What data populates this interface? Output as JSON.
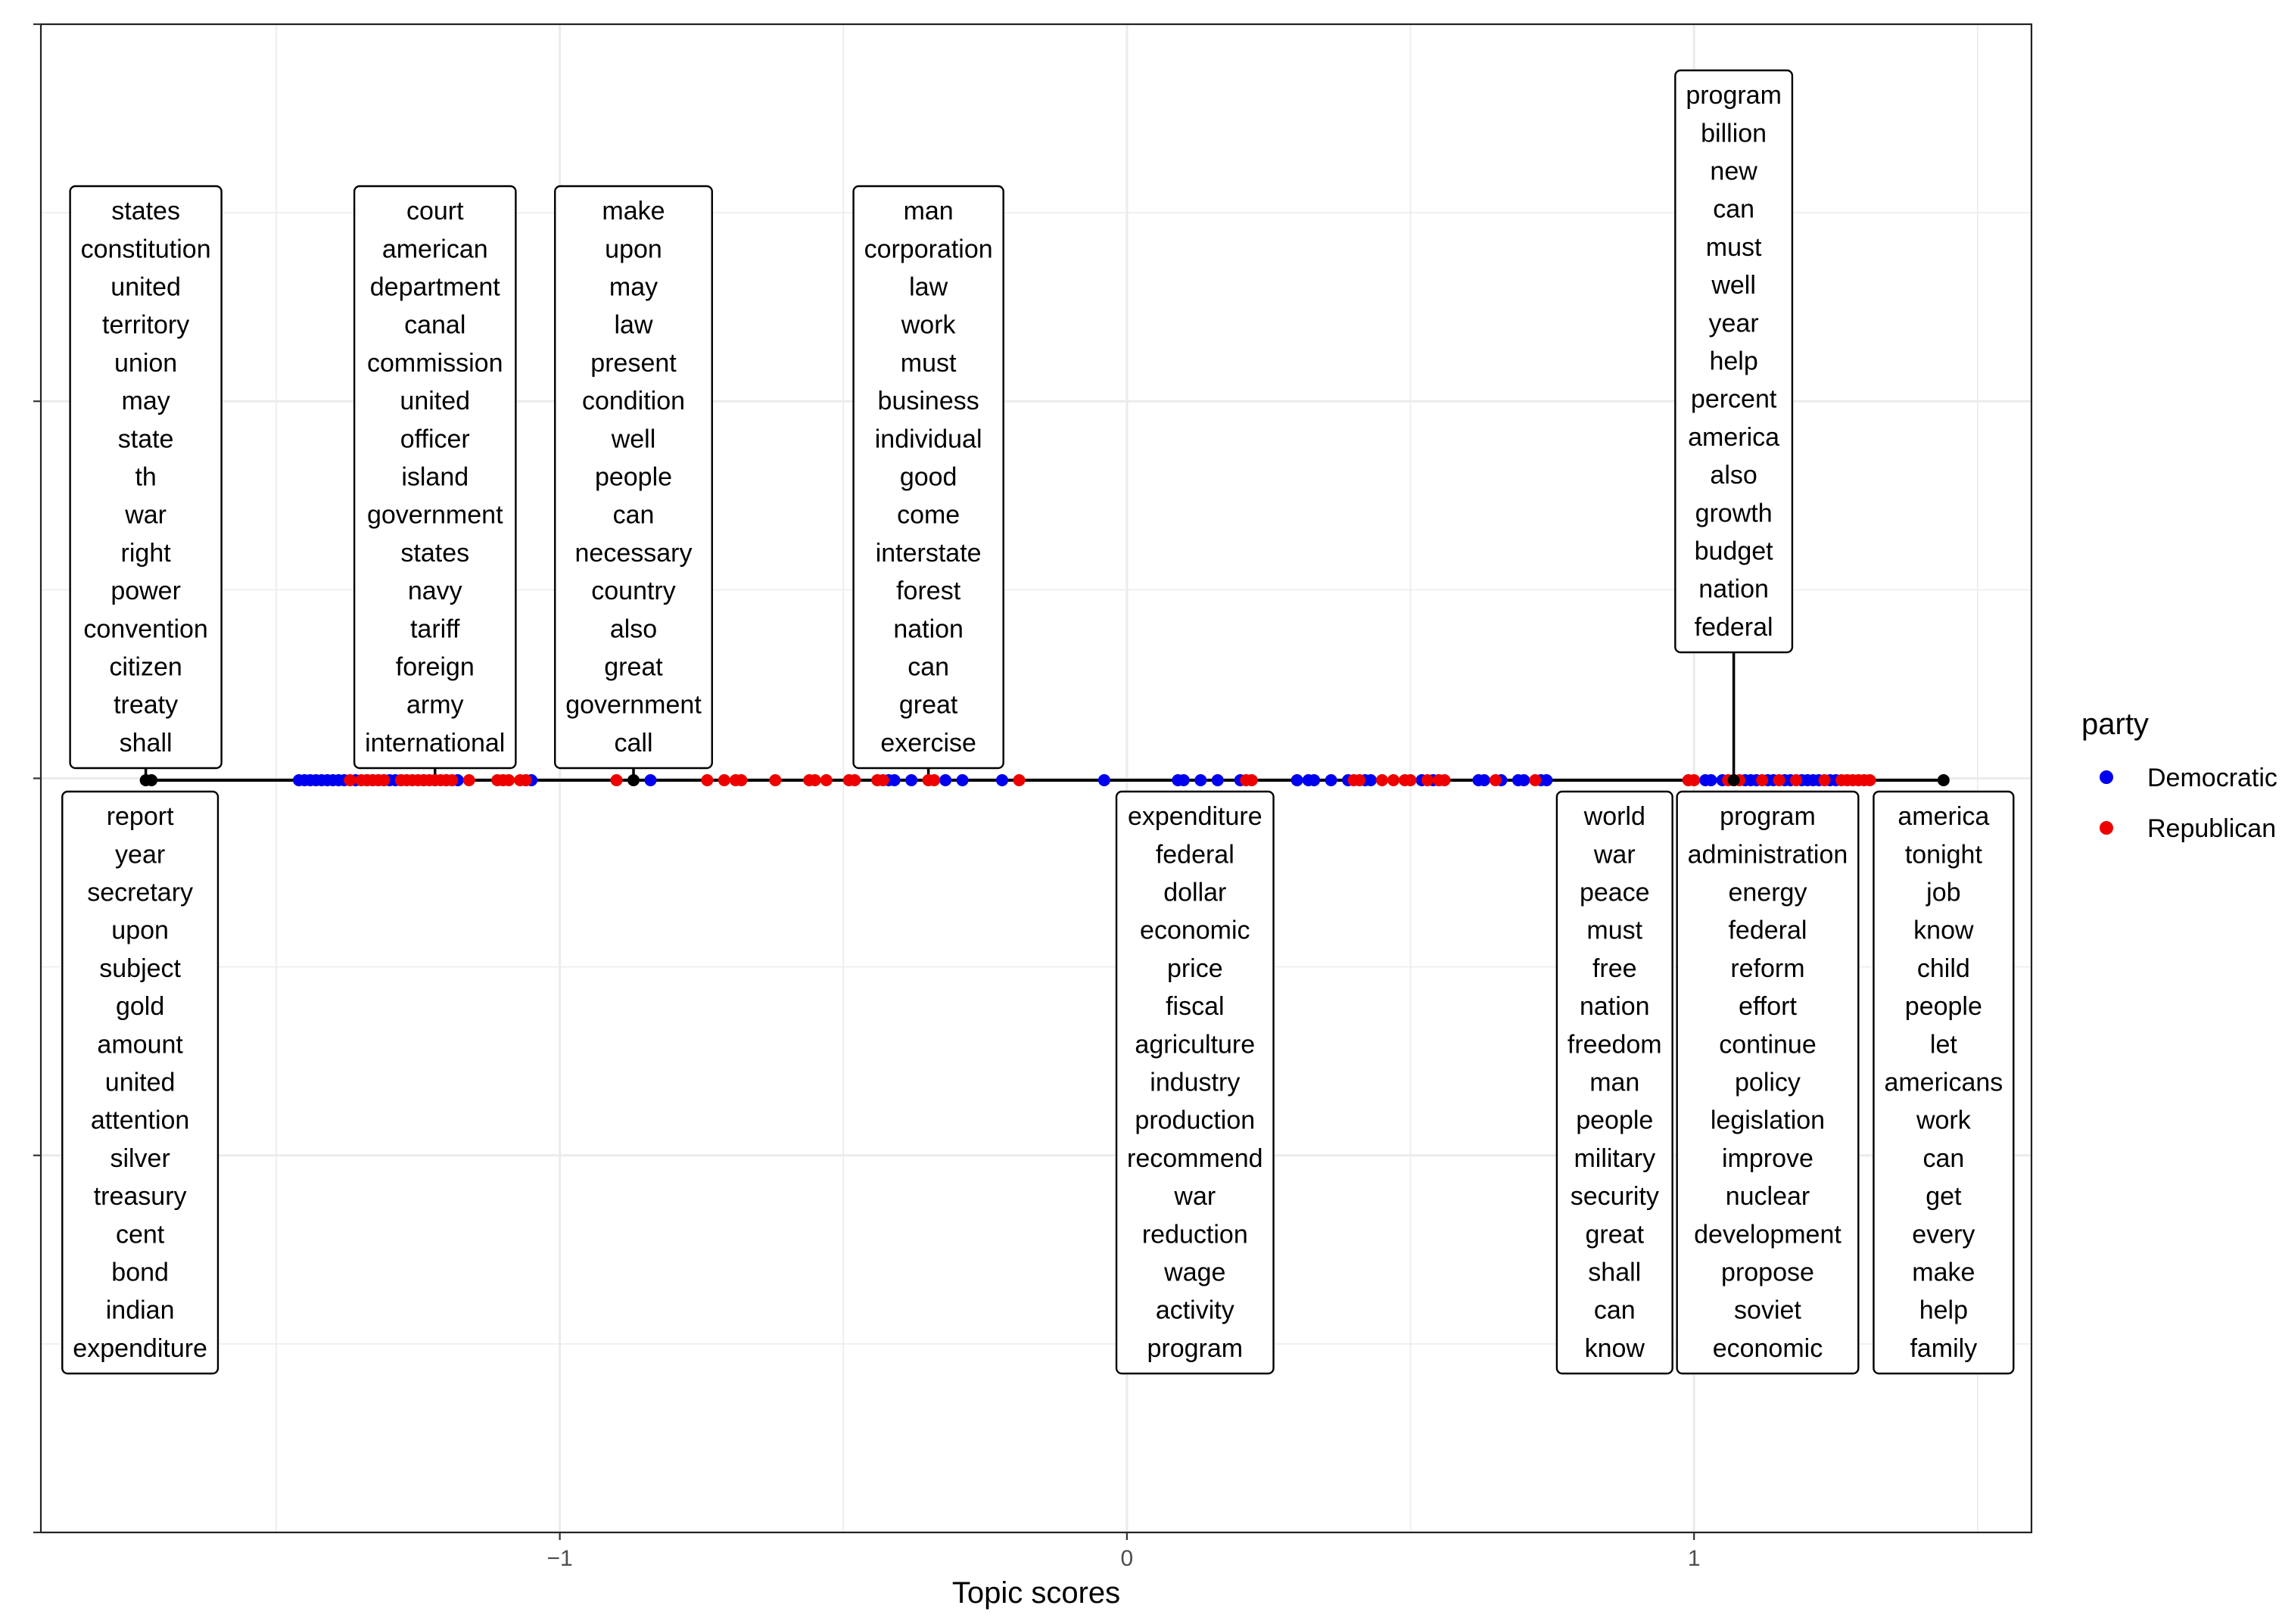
{
  "chart_data": {
    "type": "scatter",
    "xlabel": "Topic scores",
    "ylabel": "",
    "xlim": [
      -1.915,
      1.595
    ],
    "x_ticks": [
      -1,
      0,
      1
    ],
    "x_tick_labels": [
      "−1",
      "0",
      "1"
    ],
    "grid": true,
    "legend": {
      "title": "party",
      "position": "right",
      "entries": [
        {
          "name": "Democratic",
          "color": "#0000ee"
        },
        {
          "name": "Republican",
          "color": "#ee0000"
        }
      ]
    },
    "series": [
      {
        "name": "Democratic",
        "color": "#0000ee",
        "x": [
          -1.46,
          -1.45,
          -1.44,
          -1.43,
          -1.42,
          -1.41,
          -1.4,
          -1.39,
          -1.38,
          -1.36,
          -1.34,
          -1.33,
          -1.32,
          -1.31,
          -1.3,
          -1.29,
          -1.28,
          -1.24,
          -1.22,
          -1.2,
          -1.18,
          -1.06,
          -1.05,
          -0.84,
          -0.42,
          -0.41,
          -0.38,
          -0.32,
          -0.29,
          -0.22,
          -0.04,
          0.09,
          0.1,
          0.13,
          0.16,
          0.2,
          0.3,
          0.32,
          0.33,
          0.36,
          0.39,
          0.42,
          0.43,
          0.52,
          0.54,
          0.55,
          0.62,
          0.63,
          0.66,
          0.69,
          0.7,
          0.73,
          0.74,
          1.02,
          1.03,
          1.05,
          1.09,
          1.1,
          1.11,
          1.13,
          1.14,
          1.16,
          1.17,
          1.19,
          1.2,
          1.21,
          1.22,
          1.24,
          1.25
        ]
      },
      {
        "name": "Republican",
        "color": "#ee0000",
        "x": [
          -1.37,
          -1.35,
          -1.34,
          -1.33,
          -1.32,
          -1.31,
          -1.28,
          -1.27,
          -1.26,
          -1.25,
          -1.24,
          -1.23,
          -1.22,
          -1.21,
          -1.2,
          -1.19,
          -1.16,
          -1.11,
          -1.1,
          -1.09,
          -1.07,
          -1.06,
          -0.9,
          -0.74,
          -0.71,
          -0.69,
          -0.68,
          -0.62,
          -0.56,
          -0.55,
          -0.53,
          -0.49,
          -0.48,
          -0.44,
          -0.43,
          -0.35,
          -0.34,
          -0.19,
          0.21,
          0.22,
          0.4,
          0.41,
          0.45,
          0.47,
          0.49,
          0.5,
          0.53,
          0.55,
          0.56,
          0.65,
          0.72,
          0.99,
          1.0,
          1.06,
          1.07,
          1.08,
          1.12,
          1.15,
          1.18,
          1.23,
          1.26,
          1.27,
          1.28,
          1.29,
          1.3,
          1.31
        ]
      }
    ],
    "topic_points": [
      -1.73,
      -1.72,
      -0.87,
      1.07,
      1.44
    ],
    "topics": [
      {
        "x": -1.73,
        "side": "above",
        "words": [
          "states",
          "constitution",
          "united",
          "territory",
          "union",
          "may",
          "state",
          "th",
          "war",
          "right",
          "power",
          "convention",
          "citizen",
          "treaty",
          "shall"
        ]
      },
      {
        "x": -1.22,
        "side": "above",
        "words": [
          "court",
          "american",
          "department",
          "canal",
          "commission",
          "united",
          "officer",
          "island",
          "government",
          "states",
          "navy",
          "tariff",
          "foreign",
          "army",
          "international"
        ]
      },
      {
        "x": -0.87,
        "side": "above",
        "words": [
          "make",
          "upon",
          "may",
          "law",
          "present",
          "condition",
          "well",
          "people",
          "can",
          "necessary",
          "country",
          "also",
          "great",
          "government",
          "call"
        ]
      },
      {
        "x": -0.35,
        "side": "above",
        "words": [
          "man",
          "corporation",
          "law",
          "work",
          "must",
          "business",
          "individual",
          "good",
          "come",
          "interstate",
          "forest",
          "nation",
          "can",
          "great",
          "exercise"
        ]
      },
      {
        "x": 1.07,
        "side": "above",
        "words": [
          "program",
          "billion",
          "new",
          "can",
          "must",
          "well",
          "year",
          "help",
          "percent",
          "america",
          "also",
          "growth",
          "budget",
          "nation",
          "federal"
        ]
      },
      {
        "x": 0.86,
        "side": "below",
        "words": [
          "world",
          "war",
          "peace",
          "must",
          "free",
          "nation",
          "freedom",
          "man",
          "people",
          "military",
          "security",
          "great",
          "shall",
          "can",
          "know"
        ]
      },
      {
        "x": -1.74,
        "side": "below",
        "words": [
          "report",
          "year",
          "secretary",
          "upon",
          "subject",
          "gold",
          "amount",
          "united",
          "attention",
          "silver",
          "treasury",
          "cent",
          "bond",
          "indian",
          "expenditure"
        ]
      },
      {
        "x": 0.12,
        "side": "below",
        "words": [
          "expenditure",
          "federal",
          "dollar",
          "economic",
          "price",
          "fiscal",
          "agriculture",
          "industry",
          "production",
          "recommend",
          "war",
          "reduction",
          "wage",
          "activity",
          "program"
        ]
      },
      {
        "x": 1.11,
        "side": "below",
        "words": [
          "program",
          "administration",
          "energy",
          "federal",
          "reform",
          "effort",
          "continue",
          "policy",
          "legislation",
          "improve",
          "nuclear",
          "development",
          "propose",
          "soviet",
          "economic"
        ]
      },
      {
        "x": 1.44,
        "side": "below",
        "words": [
          "america",
          "tonight",
          "job",
          "know",
          "child",
          "people",
          "let",
          "americans",
          "work",
          "can",
          "get",
          "every",
          "make",
          "help",
          "family"
        ]
      }
    ]
  }
}
